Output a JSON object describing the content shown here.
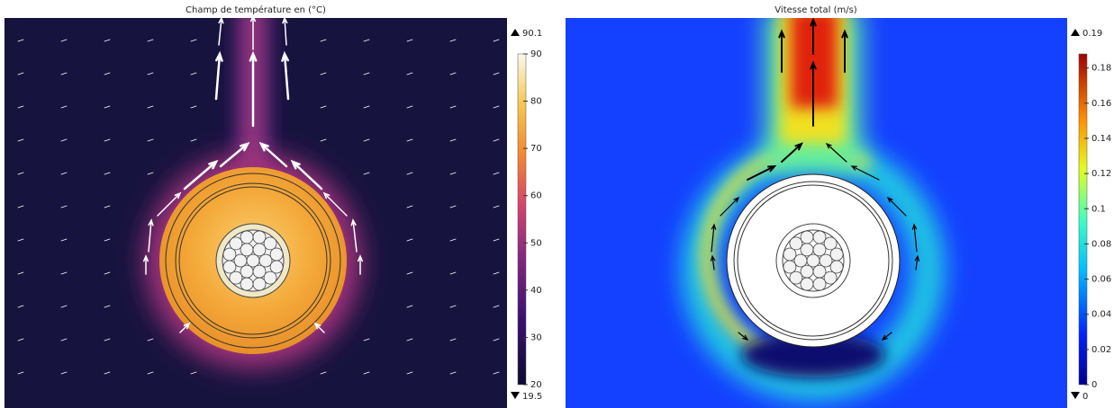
{
  "chart_data": [
    {
      "type": "colormap",
      "title": "Champ de température en (°C)",
      "ylim": [
        20,
        90
      ],
      "yticks": [
        20,
        30,
        40,
        50,
        60,
        70,
        80,
        90
      ],
      "max": 90.1,
      "min": 19.5
    },
    {
      "type": "colormap",
      "title": "Vitesse total (m/s)",
      "ylim": [
        0,
        0.188
      ],
      "yticks": [
        0,
        0.02,
        0.04,
        0.06,
        0.08,
        0.1,
        0.12,
        0.14,
        0.16,
        0.18
      ],
      "max": 0.19,
      "min": 0
    }
  ]
}
